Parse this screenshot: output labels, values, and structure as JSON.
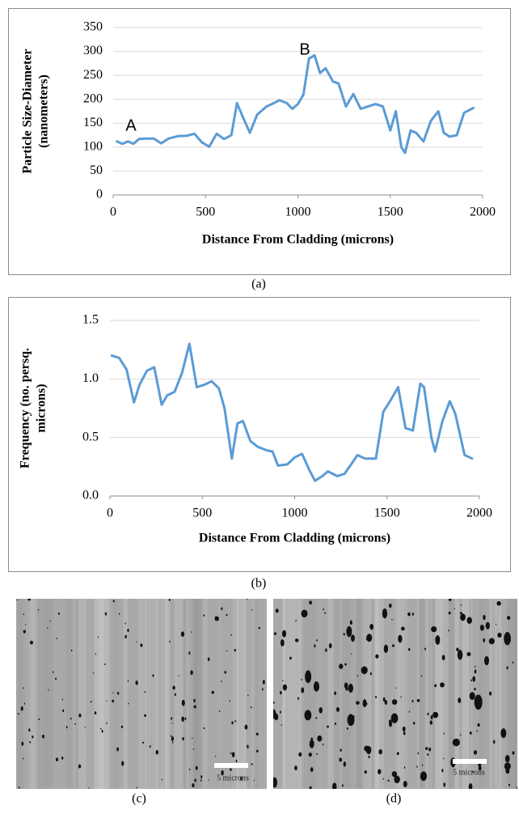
{
  "chart_data": [
    {
      "type": "line",
      "caption": "(a)",
      "x_label": "Distance From Cladding (microns)",
      "y_label": [
        "Particle Size-Diameter",
        "(nanometers)"
      ],
      "annotations": [
        "A",
        "B"
      ],
      "xlim": [
        0,
        2000
      ],
      "xticks": [
        0,
        500,
        1000,
        1500,
        2000
      ],
      "ylim": [
        0,
        350
      ],
      "yticks": [
        0,
        50,
        100,
        150,
        200,
        250,
        300,
        350
      ],
      "grid": true,
      "series": [
        {
          "color": "#5b9bd5",
          "x": [
            20,
            50,
            80,
            110,
            140,
            180,
            220,
            260,
            300,
            350,
            400,
            440,
            480,
            520,
            560,
            600,
            640,
            670,
            700,
            740,
            780,
            830,
            870,
            900,
            940,
            970,
            1000,
            1030,
            1060,
            1090,
            1120,
            1150,
            1190,
            1220,
            1260,
            1300,
            1340,
            1380,
            1420,
            1460,
            1500,
            1530,
            1560,
            1580,
            1610,
            1640,
            1680,
            1720,
            1760,
            1790,
            1820,
            1860,
            1900,
            1950
          ],
          "values": [
            112,
            107,
            112,
            107,
            117,
            118,
            118,
            108,
            118,
            123,
            124,
            128,
            110,
            101,
            128,
            117,
            125,
            192,
            165,
            130,
            168,
            185,
            192,
            198,
            192,
            180,
            190,
            210,
            285,
            292,
            255,
            265,
            237,
            233,
            185,
            211,
            180,
            185,
            190,
            185,
            135,
            175,
            100,
            88,
            135,
            130,
            112,
            155,
            175,
            130,
            122,
            125,
            172,
            182
          ]
        }
      ]
    },
    {
      "type": "line",
      "caption": "(b)",
      "x_label": "Distance From Cladding (microns)",
      "y_label": [
        "Frequency (no. persq.",
        "microns)"
      ],
      "xlim": [
        0,
        2000
      ],
      "xticks": [
        0,
        500,
        1000,
        1500,
        2000
      ],
      "ylim": [
        0,
        1.5
      ],
      "yticks": [
        {
          "value": 0,
          "label": "0.0"
        },
        {
          "value": 0.5,
          "label": "0.5"
        },
        {
          "value": 1,
          "label": "1.0"
        },
        {
          "value": 1.5,
          "label": "1.5"
        }
      ],
      "grid": true,
      "series": [
        {
          "color": "#5b9bd5",
          "x": [
            10,
            50,
            90,
            130,
            160,
            200,
            240,
            280,
            310,
            350,
            390,
            430,
            470,
            510,
            550,
            590,
            620,
            660,
            690,
            720,
            760,
            800,
            850,
            880,
            910,
            960,
            1000,
            1040,
            1080,
            1110,
            1150,
            1180,
            1230,
            1270,
            1310,
            1340,
            1380,
            1440,
            1480,
            1520,
            1560,
            1600,
            1640,
            1680,
            1700,
            1740,
            1760,
            1800,
            1840,
            1870,
            1920,
            1960
          ],
          "values": [
            1.2,
            1.18,
            1.08,
            0.8,
            0.95,
            1.07,
            1.1,
            0.78,
            0.86,
            0.89,
            1.05,
            1.3,
            0.93,
            0.95,
            0.98,
            0.92,
            0.75,
            0.32,
            0.62,
            0.64,
            0.47,
            0.42,
            0.39,
            0.38,
            0.26,
            0.27,
            0.33,
            0.36,
            0.22,
            0.13,
            0.17,
            0.21,
            0.17,
            0.19,
            0.28,
            0.35,
            0.32,
            0.32,
            0.72,
            0.82,
            0.93,
            0.58,
            0.56,
            0.96,
            0.93,
            0.5,
            0.38,
            0.64,
            0.81,
            0.7,
            0.35,
            0.32
          ]
        }
      ]
    }
  ],
  "images": [
    {
      "caption": "(c)",
      "scale_label": "5 microns"
    },
    {
      "caption": "(d)",
      "scale_label": "5 microns"
    }
  ]
}
